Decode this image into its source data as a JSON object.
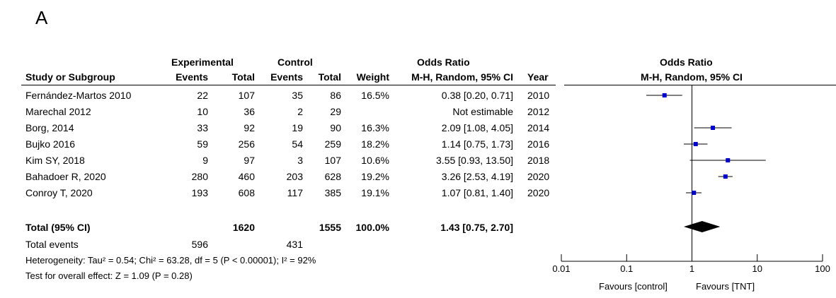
{
  "panel_label": "A",
  "headers": {
    "group_experimental": "Experimental",
    "group_control": "Control",
    "group_or": "Odds Ratio",
    "study": "Study or Subgroup",
    "exp_events": "Events",
    "exp_total": "Total",
    "ctl_events": "Events",
    "ctl_total": "Total",
    "weight": "Weight",
    "or_method": "M-H, Random, 95% CI",
    "year": "Year",
    "plot_title": "Odds Ratio",
    "plot_method": "M-H, Random, 95% CI"
  },
  "studies": [
    {
      "name": "Fernández-Martos 2010",
      "e_events": "22",
      "e_total": "107",
      "c_events": "35",
      "c_total": "86",
      "weight": "16.5%",
      "or_text": "0.38 [0.20, 0.71]",
      "year": "2010"
    },
    {
      "name": "Marechal 2012",
      "e_events": "10",
      "e_total": "36",
      "c_events": "2",
      "c_total": "29",
      "weight": "",
      "or_text": "Not estimable",
      "year": "2012"
    },
    {
      "name": "Borg, 2014",
      "e_events": "33",
      "e_total": "92",
      "c_events": "19",
      "c_total": "90",
      "weight": "16.3%",
      "or_text": "2.09 [1.08, 4.05]",
      "year": "2014"
    },
    {
      "name": "Bujko 2016",
      "e_events": "59",
      "e_total": "256",
      "c_events": "54",
      "c_total": "259",
      "weight": "18.2%",
      "or_text": "1.14 [0.75, 1.73]",
      "year": "2016"
    },
    {
      "name": "Kim SY, 2018",
      "e_events": "9",
      "e_total": "97",
      "c_events": "3",
      "c_total": "107",
      "weight": "10.6%",
      "or_text": "3.55 [0.93, 13.50]",
      "year": "2018"
    },
    {
      "name": "Bahadoer R, 2020",
      "e_events": "280",
      "e_total": "460",
      "c_events": "203",
      "c_total": "628",
      "weight": "19.2%",
      "or_text": "3.26 [2.53, 4.19]",
      "year": "2020"
    },
    {
      "name": "Conroy T, 2020",
      "e_events": "193",
      "e_total": "608",
      "c_events": "117",
      "c_total": "385",
      "weight": "19.1%",
      "or_text": "1.07 [0.81, 1.40]",
      "year": "2020"
    }
  ],
  "total": {
    "label": "Total (95% CI)",
    "e_total": "1620",
    "c_total": "1555",
    "weight": "100.0%",
    "or_text": "1.43 [0.75, 2.70]"
  },
  "total_events": {
    "label": "Total events",
    "e_events": "596",
    "c_events": "431"
  },
  "heterogeneity": "Heterogeneity: Tau² = 0.54; Chi² = 63.28, df = 5 (P < 0.00001); I² = 92%",
  "overall_effect": "Test for overall effect: Z = 1.09 (P = 0.28)",
  "chart_data": {
    "type": "forest",
    "scale": "log",
    "xlim": [
      0.01,
      100
    ],
    "ticks": [
      {
        "value": 0.01,
        "label": "0.01"
      },
      {
        "value": 0.1,
        "label": "0.1"
      },
      {
        "value": 1,
        "label": "1"
      },
      {
        "value": 10,
        "label": "10"
      },
      {
        "value": 100,
        "label": "100"
      }
    ],
    "favours_left": "Favours [control]",
    "favours_right": "Favours [TNT]",
    "points": [
      {
        "study": "Fernández-Martos 2010",
        "or": 0.38,
        "lo": 0.2,
        "hi": 0.71
      },
      {
        "study": "Marechal 2012",
        "or": null,
        "lo": null,
        "hi": null
      },
      {
        "study": "Borg, 2014",
        "or": 2.09,
        "lo": 1.08,
        "hi": 4.05
      },
      {
        "study": "Bujko 2016",
        "or": 1.14,
        "lo": 0.75,
        "hi": 1.73
      },
      {
        "study": "Kim SY, 2018",
        "or": 3.55,
        "lo": 0.93,
        "hi": 13.5
      },
      {
        "study": "Bahadoer R, 2020",
        "or": 3.26,
        "lo": 2.53,
        "hi": 4.19
      },
      {
        "study": "Conroy T, 2020",
        "or": 1.07,
        "lo": 0.81,
        "hi": 1.4
      }
    ],
    "pooled": {
      "or": 1.43,
      "lo": 0.75,
      "hi": 2.7
    },
    "marker_color": "#0000cc"
  }
}
